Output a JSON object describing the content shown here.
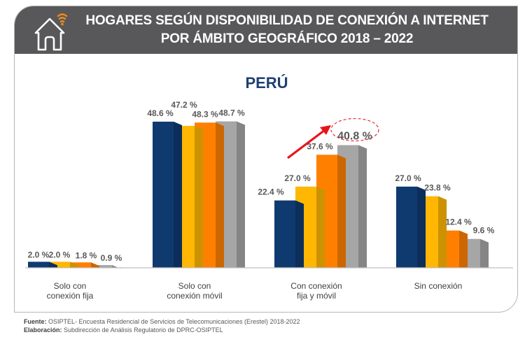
{
  "header": {
    "title_line1": "HOGARES SEGÚN DISPONIBILIDAD DE CONEXIÓN A INTERNET",
    "title_line2": "POR ÁMBITO GEOGRÁFICO 2018 – 2022",
    "icon": "house-wifi-icon"
  },
  "colors": {
    "header_bg": "#58585a",
    "wifi_accent": "#f08a1c",
    "subtitle": "#1f3f73",
    "arrow": "#e8141b",
    "highlight_circle": "#e03030"
  },
  "chart_data": {
    "type": "bar",
    "title": "PERÚ",
    "xlabel": "",
    "ylabel": "",
    "ylim": [
      0,
      50
    ],
    "grid": false,
    "legend": "none",
    "categories": [
      [
        "Solo con",
        "conexión  fija"
      ],
      [
        "Solo con",
        "conexión  móvil"
      ],
      [
        "Con conexión",
        "fija y móvil"
      ],
      [
        "Sin conexión"
      ]
    ],
    "series": [
      {
        "name": "Serie 1",
        "color": "#0f3a70",
        "values": [
          2.0,
          48.6,
          22.4,
          27.0
        ]
      },
      {
        "name": "Serie 2",
        "color": "#ffb703",
        "values": [
          2.0,
          47.2,
          27.0,
          23.8
        ]
      },
      {
        "name": "Serie 3",
        "color": "#ff8000",
        "values": [
          1.8,
          48.3,
          37.6,
          12.4
        ]
      },
      {
        "name": "Serie 4",
        "color": "#a6a6a6",
        "values": [
          0.9,
          48.7,
          40.8,
          9.6
        ]
      }
    ],
    "data_labels": [
      [
        "2.0 %",
        "2.0 %",
        "1.8 %",
        "0.9 %"
      ],
      [
        "48.6 %",
        "47.2 %",
        "48.3 %",
        "48.7 %"
      ],
      [
        "22.4 %",
        "27.0 %",
        "37.6 %",
        "40.8 %"
      ],
      [
        "27.0 %",
        "23.8 %",
        "12.4 %",
        "9.6 %"
      ]
    ],
    "annotations": [
      {
        "type": "arrow",
        "direction": "up-right",
        "group": 2,
        "description": "trend arrow"
      },
      {
        "type": "dashed-circle",
        "group": 2,
        "series": 3,
        "label": "40.8 %"
      }
    ]
  },
  "footer": {
    "source_label": "Fuente:",
    "source_text": " OSIPTEL- Encuesta Residencial de Servicios de Telecomunicaciones (Erestel) 2018-2022",
    "made_label": "Elaboración:",
    "made_text": " Subdirección de Análisis Regulatorio de DPRC-OSIPTEL"
  }
}
